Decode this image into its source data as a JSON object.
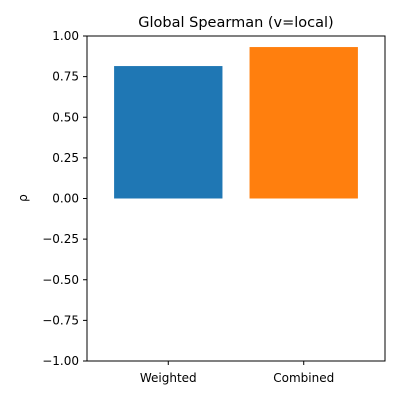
{
  "chart_data": {
    "type": "bar",
    "title": "Global Spearman (v=local)",
    "xlabel": "",
    "ylabel": "ρ",
    "categories": [
      "Weighted",
      "Combined"
    ],
    "values": [
      0.815,
      0.932
    ],
    "colors": [
      "#1f77b4",
      "#ff7f0e"
    ],
    "ylim": [
      -1.0,
      1.0
    ],
    "yticks": [
      "−1.00",
      "−0.75",
      "−0.50",
      "−0.25",
      "0.00",
      "0.25",
      "0.50",
      "0.75",
      "1.00"
    ],
    "ytick_values": [
      -1.0,
      -0.75,
      -0.5,
      -0.25,
      0.0,
      0.25,
      0.5,
      0.75,
      1.0
    ],
    "grid": false,
    "legend": "none"
  }
}
